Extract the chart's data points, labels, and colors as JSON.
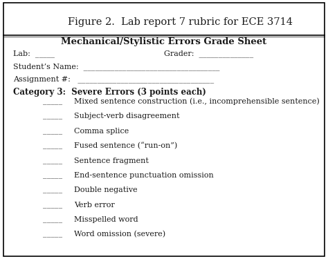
{
  "title": "Figure 2.  Lab report 7 rubric for ECE 3714",
  "header": "Mechanical/Stylistic Errors Grade Sheet",
  "lab_label": "Lab:  _____",
  "grader_label": "Grader:  ______________",
  "student_label": "Student’s Name:  ___________________________________",
  "assignment_label": "Assignment #:   ___________________________________",
  "category_header": "Category 3:  Severe Errors (3 points each)",
  "items": [
    "Mixed sentence construction (i.e., incomprehensible sentence)",
    "Subject-verb disagreement",
    "Comma splice",
    "Fused sentence (“run-on”)",
    "Sentence fragment",
    "End-sentence punctuation omission",
    "Double negative",
    "Verb error",
    "Misspelled word",
    "Word omission (severe)"
  ],
  "bg_color": "#ffffff",
  "text_color": "#1a1a1a",
  "border_color": "#000000",
  "title_fontsize": 10.5,
  "header_fontsize": 9.5,
  "body_fontsize": 8.0,
  "category_fontsize": 8.5,
  "fig_width": 4.74,
  "fig_height": 3.75,
  "dpi": 100
}
